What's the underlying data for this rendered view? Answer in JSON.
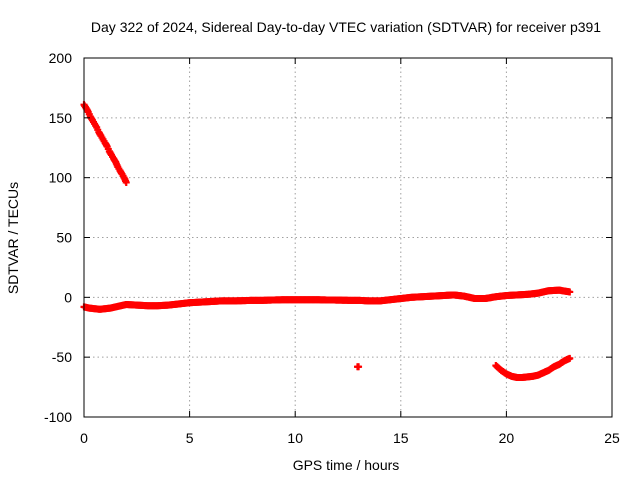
{
  "chart_data": {
    "type": "scatter",
    "title": "Day 322 of 2024, Sidereal Day-to-day VTEC variation (SDTVAR) for receiver p391",
    "xlabel": "GPS time / hours",
    "ylabel": "SDTVAR / TECUs",
    "xlim": [
      0,
      25
    ],
    "ylim": [
      -100,
      200
    ],
    "xticks": [
      0,
      5,
      10,
      15,
      20,
      25
    ],
    "yticks": [
      -100,
      -50,
      0,
      50,
      100,
      150,
      200
    ],
    "xtick_labels": [
      "0",
      "5",
      "10",
      "15",
      "20",
      "25"
    ],
    "ytick_labels": [
      "-100",
      "-50",
      "0",
      "50",
      "100",
      "150",
      "200"
    ],
    "grid": true,
    "marker": "plus",
    "color": "#ff0000",
    "series": [
      {
        "name": "segment-early-descending",
        "x": [
          0.0,
          0.1,
          0.2,
          0.3,
          0.4,
          0.5,
          0.6,
          0.7,
          0.8,
          0.9,
          1.0,
          1.1,
          1.2,
          1.3,
          1.4,
          1.5,
          1.6,
          1.7,
          1.8,
          1.9,
          2.0
        ],
        "y": [
          161,
          158,
          155,
          151,
          148,
          145,
          142,
          138,
          135,
          132,
          129,
          126,
          122,
          119,
          116,
          113,
          109,
          106,
          103,
          100,
          96
        ]
      },
      {
        "name": "segment-main-near-zero",
        "x": [
          0.0,
          0.25,
          0.5,
          0.75,
          1.0,
          1.25,
          1.5,
          1.75,
          2.0,
          2.5,
          3.0,
          3.5,
          4.0,
          4.5,
          5.0,
          5.5,
          6.0,
          6.5,
          7.0,
          7.5,
          8.0,
          8.5,
          9.0,
          9.5,
          10.0,
          10.5,
          11.0,
          11.5,
          12.0,
          12.5,
          13.0,
          13.5,
          14.0,
          14.5,
          15.0,
          15.5,
          16.0,
          16.5,
          17.0,
          17.5,
          18.0,
          18.5,
          19.0,
          19.5,
          20.0,
          20.5,
          21.0,
          21.5,
          22.0,
          22.5,
          23.0
        ],
        "y": [
          -8,
          -9,
          -9.5,
          -10,
          -9.5,
          -9,
          -8,
          -7,
          -6,
          -6.5,
          -7,
          -7,
          -6.5,
          -5.5,
          -4.5,
          -4,
          -3.5,
          -3,
          -3,
          -2.8,
          -2.5,
          -2.5,
          -2.2,
          -2,
          -2,
          -2,
          -2,
          -2.2,
          -2.3,
          -2.5,
          -2.5,
          -3,
          -3,
          -2,
          -1,
          0,
          0.5,
          1,
          1.5,
          2,
          1,
          -1,
          -1,
          0.5,
          1.5,
          2,
          2.5,
          3.5,
          5.5,
          6,
          4.5
        ]
      },
      {
        "name": "segment-isolated",
        "x": [
          12.95,
          13.0
        ],
        "y": [
          -58,
          -58
        ]
      },
      {
        "name": "segment-late-dip",
        "x": [
          19.5,
          19.75,
          20.0,
          20.25,
          20.5,
          20.75,
          21.0,
          21.25,
          21.5,
          21.75,
          22.0,
          22.25,
          22.5,
          22.75,
          23.0
        ],
        "y": [
          -57,
          -61,
          -64,
          -66,
          -67,
          -67,
          -66.5,
          -66,
          -65,
          -63,
          -61,
          -58,
          -56,
          -53,
          -51
        ]
      }
    ]
  }
}
